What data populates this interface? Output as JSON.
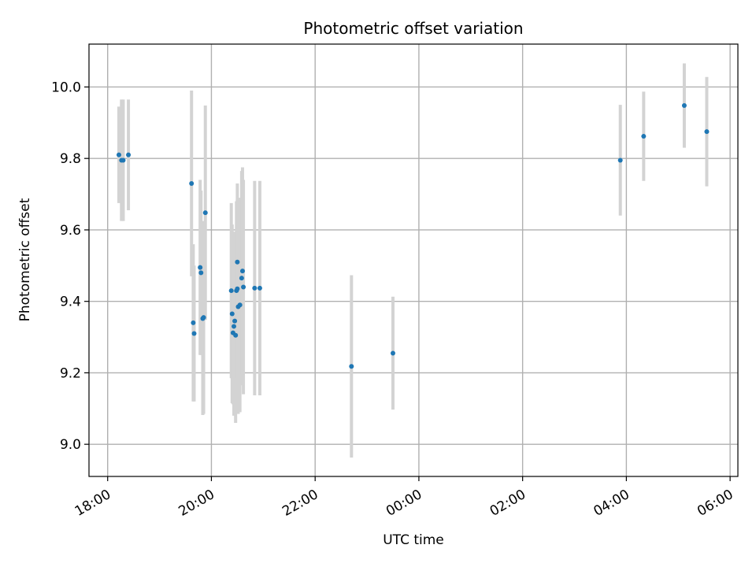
{
  "chart_data": {
    "type": "scatter",
    "title": "Photometric offset variation",
    "xlabel": "UTC time",
    "ylabel": "Photometric offset",
    "x_ticks": [
      "18:00",
      "20:00",
      "22:00",
      "00:00",
      "02:00",
      "04:00",
      "06:00"
    ],
    "y_ticks": [
      "9.0",
      "9.2",
      "9.4",
      "9.6",
      "9.8",
      "10.0"
    ],
    "xlim_hours": [
      17.64,
      30.15
    ],
    "ylim": [
      8.91,
      10.12
    ],
    "grid": true,
    "legend": "none",
    "point_color": "#1f77b4",
    "errorbar_color": "#d3d3d3",
    "points": [
      {
        "t": "18:13",
        "y": 9.81,
        "err": 0.135
      },
      {
        "t": "18:16",
        "y": 9.795,
        "err": 0.17
      },
      {
        "t": "18:18",
        "y": 9.795,
        "err": 0.17
      },
      {
        "t": "18:24",
        "y": 9.81,
        "err": 0.155
      },
      {
        "t": "19:37",
        "y": 9.73,
        "err": 0.26
      },
      {
        "t": "19:39",
        "y": 9.34,
        "err": 0.22
      },
      {
        "t": "19:40",
        "y": 9.31,
        "err": 0.19
      },
      {
        "t": "19:47",
        "y": 9.495,
        "err": 0.245
      },
      {
        "t": "19:48",
        "y": 9.48,
        "err": 0.23
      },
      {
        "t": "19:50",
        "y": 9.352,
        "err": 0.27
      },
      {
        "t": "19:51",
        "y": 9.355,
        "err": 0.27
      },
      {
        "t": "19:53",
        "y": 9.648,
        "err": 0.3
      },
      {
        "t": "20:23",
        "y": 9.43,
        "err": 0.245
      },
      {
        "t": "20:24",
        "y": 9.365,
        "err": 0.25
      },
      {
        "t": "20:25",
        "y": 9.312,
        "err": 0.2
      },
      {
        "t": "20:26",
        "y": 9.33,
        "err": 0.25
      },
      {
        "t": "20:27",
        "y": 9.345,
        "err": 0.25
      },
      {
        "t": "20:28",
        "y": 9.305,
        "err": 0.245
      },
      {
        "t": "20:29",
        "y": 9.43,
        "err": 0.25
      },
      {
        "t": "20:30",
        "y": 9.435,
        "err": 0.25
      },
      {
        "t": "20:30",
        "y": 9.51,
        "err": 0.22
      },
      {
        "t": "20:31",
        "y": 9.385,
        "err": 0.3
      },
      {
        "t": "20:33",
        "y": 9.39,
        "err": 0.3
      },
      {
        "t": "20:35",
        "y": 9.465,
        "err": 0.3
      },
      {
        "t": "20:36",
        "y": 9.485,
        "err": 0.29
      },
      {
        "t": "20:37",
        "y": 9.44,
        "err": 0.3
      },
      {
        "t": "20:50",
        "y": 9.437,
        "err": 0.3
      },
      {
        "t": "20:56",
        "y": 9.437,
        "err": 0.3
      },
      {
        "t": "22:42",
        "y": 9.218,
        "err": 0.255
      },
      {
        "t": "23:30",
        "y": 9.255,
        "err": 0.158
      },
      {
        "t": "03:53",
        "y": 9.795,
        "err": 0.155
      },
      {
        "t": "04:20",
        "y": 9.862,
        "err": 0.125
      },
      {
        "t": "05:07",
        "y": 9.948,
        "err": 0.118
      },
      {
        "t": "05:33",
        "y": 9.875,
        "err": 0.153
      }
    ]
  }
}
